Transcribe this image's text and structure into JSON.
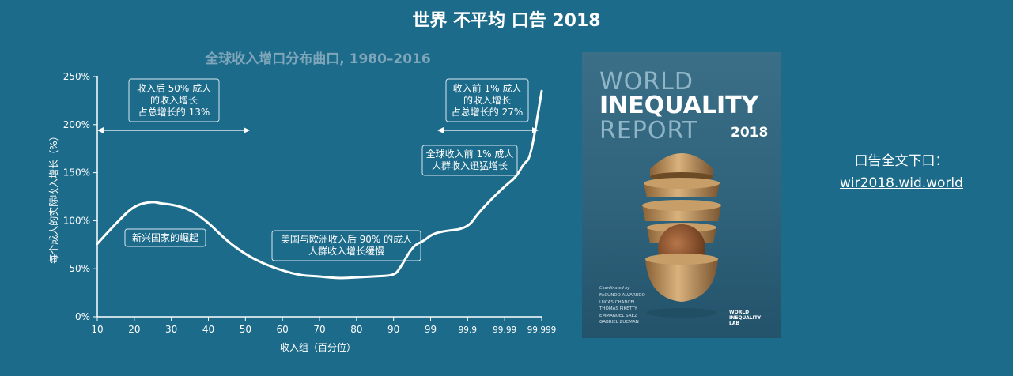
{
  "header": {
    "title": "世界 不平均 口告 2018"
  },
  "chart_data": {
    "type": "line",
    "title": "全球收入增口分布曲口, 1980–2016",
    "xlabel": "收入组（百分位）",
    "ylabel": "每个成人的实际收入增长（%）",
    "ylim": [
      0,
      250
    ],
    "y_ticks": [
      0,
      50,
      100,
      150,
      200,
      250
    ],
    "y_tick_labels": [
      "0%",
      "50%",
      "100%",
      "150%",
      "200%",
      "250%"
    ],
    "x_ticks": [
      "10",
      "20",
      "30",
      "40",
      "50",
      "60",
      "70",
      "80",
      "90",
      "99",
      "99.9",
      "99.99",
      "99.999"
    ],
    "grid": false,
    "legend": "none",
    "series": [
      {
        "points": [
          {
            "x": "10",
            "y": 76
          },
          {
            "x": "15",
            "y": 97
          },
          {
            "x": "20",
            "y": 116
          },
          {
            "x": "25",
            "y": 120
          },
          {
            "x": "27",
            "y": 118
          },
          {
            "x": "30",
            "y": 117
          },
          {
            "x": "35",
            "y": 112
          },
          {
            "x": "40",
            "y": 98
          },
          {
            "x": "45",
            "y": 79
          },
          {
            "x": "50",
            "y": 65
          },
          {
            "x": "55",
            "y": 55
          },
          {
            "x": "60",
            "y": 48
          },
          {
            "x": "65",
            "y": 43
          },
          {
            "x": "70",
            "y": 42
          },
          {
            "x": "75",
            "y": 40
          },
          {
            "x": "80",
            "y": 41
          },
          {
            "x": "85",
            "y": 42
          },
          {
            "x": "90",
            "y": 43
          },
          {
            "x": "93",
            "y": 49
          },
          {
            "x": "97",
            "y": 74
          },
          {
            "x": "98.5",
            "y": 79
          },
          {
            "x": "99",
            "y": 85
          },
          {
            "x": "99.5",
            "y": 89
          },
          {
            "x": "99.9",
            "y": 92
          },
          {
            "x": "99.95",
            "y": 109
          },
          {
            "x": "99.99",
            "y": 136
          },
          {
            "x": "99.995",
            "y": 145
          },
          {
            "x": "99.997",
            "y": 160
          },
          {
            "x": "99.998",
            "y": 165
          },
          {
            "x": "99.999",
            "y": 235
          }
        ]
      }
    ],
    "annotations": [
      {
        "lines": [
          "收入后 50% 成人",
          "的收入增长",
          "占总增长的 13%"
        ]
      },
      {
        "lines": [
          "收入前 1% 成人",
          "的收入增长",
          "占总增长的 27%"
        ]
      },
      {
        "lines": [
          "全球收入前 1% 成人",
          "人群收入迅猛增长"
        ]
      },
      {
        "lines": [
          "新兴国家的崛起"
        ]
      },
      {
        "lines": [
          "美国与欧洲收入后 90% 的成人",
          "人群收入增长缓慢"
        ]
      }
    ]
  },
  "cover": {
    "title_line1": "WORLD",
    "title_line2": "INEQUALITY",
    "title_line3": "REPORT",
    "year": "2018",
    "coordinated_by": "Coordinated by",
    "authors": [
      "FACUNDO ALVAREDO",
      "LUCAS CHANCEL",
      "THOMAS PIKETTY",
      "EMMANUEL SAEZ",
      "GABRIEL ZUCMAN"
    ],
    "lab_lines": [
      "WORLD",
      "INEQUALITY",
      "LAB"
    ]
  },
  "download": {
    "label": "口告全文下口：",
    "link": "wir2018.wid.world"
  }
}
